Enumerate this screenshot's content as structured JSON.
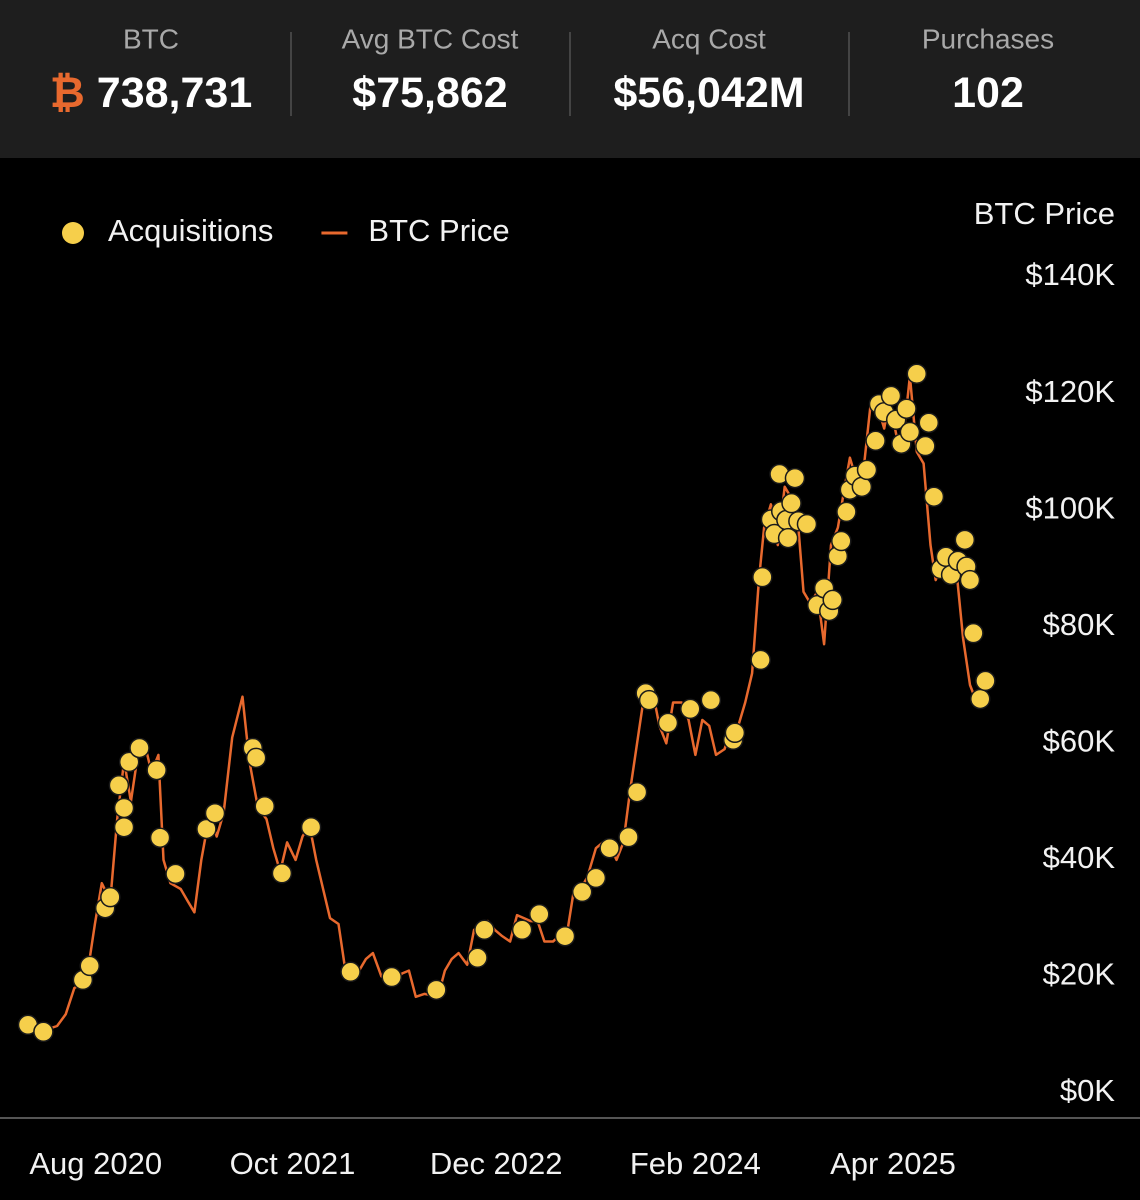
{
  "header": {
    "stats": [
      {
        "label": "BTC",
        "symbol": "₿",
        "value": "738,731"
      },
      {
        "label": "Avg BTC Cost",
        "value": "$75,862"
      },
      {
        "label": "Acq Cost",
        "value": "$56,042M"
      },
      {
        "label": "Purchases",
        "value": "102"
      }
    ]
  },
  "chart_data": {
    "type": "line",
    "y_axis_title": "BTC Price",
    "xlim": [
      2020.447,
      2026.275
    ],
    "xticks": [
      {
        "value": 2020.583,
        "label": "Aug 2020"
      },
      {
        "value": 2021.75,
        "label": "Oct 2021"
      },
      {
        "value": 2022.917,
        "label": "Dec 2022"
      },
      {
        "value": 2024.083,
        "label": "Feb 2024"
      },
      {
        "value": 2025.25,
        "label": "Apr 2025"
      }
    ],
    "ylim": [
      0,
      140000
    ],
    "yticks": [
      {
        "value": 0,
        "label": "$0K"
      },
      {
        "value": 20000,
        "label": "$20K"
      },
      {
        "value": 40000,
        "label": "$40K"
      },
      {
        "value": 60000,
        "label": "$60K"
      },
      {
        "value": 80000,
        "label": "$80K"
      },
      {
        "value": 100000,
        "label": "$100K"
      },
      {
        "value": 120000,
        "label": "$120K"
      },
      {
        "value": 140000,
        "label": "$140K"
      }
    ],
    "grid": false,
    "series": [
      {
        "name": "Acquisitions",
        "type": "scatter",
        "color": "#f6cf4b",
        "x": [
          2020.61,
          2020.7,
          2020.93,
          2020.97,
          2021.06,
          2021.09,
          2021.14,
          2021.17,
          2021.17,
          2021.2,
          2021.26,
          2021.36,
          2021.38,
          2021.47,
          2021.65,
          2021.7,
          2021.92,
          2021.94,
          2021.99,
          2022.09,
          2022.26,
          2022.49,
          2022.73,
          2022.99,
          2023.23,
          2023.27,
          2023.49,
          2023.59,
          2023.74,
          2023.84,
          2023.92,
          2024.0,
          2024.11,
          2024.16,
          2024.21,
          2024.23,
          2024.34,
          2024.47,
          2024.59,
          2024.72,
          2024.73,
          2024.88,
          2024.89,
          2024.94,
          2024.96,
          2024.99,
          2025.0,
          2025.03,
          2025.04,
          2025.06,
          2025.08,
          2025.1,
          2025.15,
          2025.21,
          2025.25,
          2025.28,
          2025.3,
          2025.33,
          2025.35,
          2025.38,
          2025.4,
          2025.43,
          2025.47,
          2025.5,
          2025.55,
          2025.57,
          2025.6,
          2025.64,
          2025.67,
          2025.7,
          2025.73,
          2025.75,
          2025.79,
          2025.84,
          2025.86,
          2025.89,
          2025.93,
          2025.96,
          2025.99,
          2026.03,
          2026.07,
          2026.08,
          2026.1,
          2026.12,
          2026.16,
          2026.19
        ],
        "values": [
          11700,
          10500,
          19400,
          21800,
          31700,
          33600,
          52800,
          48900,
          45600,
          56800,
          59200,
          55400,
          43800,
          37600,
          45300,
          48000,
          59200,
          57500,
          49200,
          37700,
          45600,
          20800,
          19900,
          17700,
          23200,
          28000,
          28000,
          30700,
          26900,
          34500,
          36900,
          42000,
          43900,
          51600,
          68600,
          67400,
          63500,
          65900,
          67400,
          60600,
          61800,
          74300,
          88500,
          98400,
          95900,
          106200,
          99800,
          98300,
          95200,
          101200,
          105500,
          98100,
          97600,
          83700,
          86600,
          82700,
          84600,
          92100,
          94700,
          99700,
          103500,
          105900,
          104000,
          106900,
          111900,
          118200,
          116800,
          119600,
          115500,
          111400,
          117400,
          113400,
          123400,
          111000,
          115000,
          102300,
          89900,
          92000,
          88900,
          91300,
          94900,
          90300,
          88000,
          78900,
          67600,
          70700
        ]
      },
      {
        "name": "BTC Price",
        "type": "line",
        "color": "#e8692e",
        "x": [
          2020.61,
          2020.7,
          2020.78,
          2020.83,
          2020.88,
          2020.95,
          2021.0,
          2021.04,
          2021.09,
          2021.13,
          2021.17,
          2021.21,
          2021.25,
          2021.29,
          2021.33,
          2021.37,
          2021.4,
          2021.44,
          2021.5,
          2021.54,
          2021.58,
          2021.62,
          2021.67,
          2021.71,
          2021.75,
          2021.8,
          2021.86,
          2021.9,
          2021.95,
          2022.0,
          2022.04,
          2022.08,
          2022.12,
          2022.17,
          2022.21,
          2022.25,
          2022.29,
          2022.33,
          2022.37,
          2022.42,
          2022.46,
          2022.5,
          2022.54,
          2022.58,
          2022.62,
          2022.67,
          2022.71,
          2022.75,
          2022.79,
          2022.83,
          2022.87,
          2022.92,
          2022.96,
          2023.0,
          2023.04,
          2023.08,
          2023.12,
          2023.17,
          2023.21,
          2023.25,
          2023.29,
          2023.33,
          2023.37,
          2023.42,
          2023.46,
          2023.5,
          2023.54,
          2023.58,
          2023.62,
          2023.67,
          2023.71,
          2023.75,
          2023.79,
          2023.83,
          2023.87,
          2023.92,
          2023.96,
          2024.0,
          2024.04,
          2024.08,
          2024.12,
          2024.17,
          2024.21,
          2024.25,
          2024.29,
          2024.33,
          2024.37,
          2024.42,
          2024.46,
          2024.5,
          2024.54,
          2024.58,
          2024.62,
          2024.67,
          2024.71,
          2024.75,
          2024.79,
          2024.83,
          2024.87,
          2024.9,
          2024.94,
          2024.98,
          2025.02,
          2025.06,
          2025.1,
          2025.13,
          2025.17,
          2025.21,
          2025.25,
          2025.29,
          2025.33,
          2025.37,
          2025.4,
          2025.44,
          2025.48,
          2025.52,
          2025.56,
          2025.6,
          2025.63,
          2025.67,
          2025.71,
          2025.75,
          2025.79,
          2025.83,
          2025.87,
          2025.9,
          2025.94,
          2025.98,
          2026.02,
          2026.06,
          2026.1,
          2026.14,
          2026.19
        ],
        "values": [
          11600,
          10700,
          11500,
          13500,
          18000,
          19200,
          29000,
          36000,
          33000,
          47000,
          57000,
          50000,
          58000,
          60000,
          55000,
          58000,
          40000,
          36000,
          35000,
          33000,
          31000,
          40000,
          48000,
          44000,
          48000,
          61000,
          68000,
          57000,
          49000,
          47000,
          42000,
          38000,
          43000,
          40000,
          44000,
          46000,
          40000,
          35000,
          30000,
          29000,
          21000,
          19500,
          21000,
          23000,
          24000,
          20000,
          19500,
          19300,
          20500,
          21000,
          16500,
          17000,
          16800,
          16600,
          21000,
          23000,
          24000,
          22000,
          28000,
          28500,
          29500,
          28000,
          27000,
          26000,
          30500,
          30000,
          29500,
          29500,
          26000,
          26000,
          27000,
          27000,
          34500,
          35000,
          37000,
          42000,
          43000,
          42500,
          40000,
          43000,
          52000,
          62000,
          70000,
          69000,
          63000,
          60000,
          67000,
          67000,
          64000,
          58000,
          64000,
          63000,
          58000,
          59000,
          63000,
          63000,
          67000,
          72000,
          88000,
          97000,
          101000,
          94000,
          104000,
          102000,
          97000,
          86000,
          84000,
          86000,
          77000,
          94000,
          97000,
          104000,
          109000,
          105000,
          107000,
          118000,
          118000,
          114000,
          119000,
          113000,
          112000,
          123000,
          110000,
          108000,
          94000,
          88000,
          91000,
          88000,
          90000,
          78000,
          70000,
          67000,
          68000
        ]
      }
    ]
  }
}
